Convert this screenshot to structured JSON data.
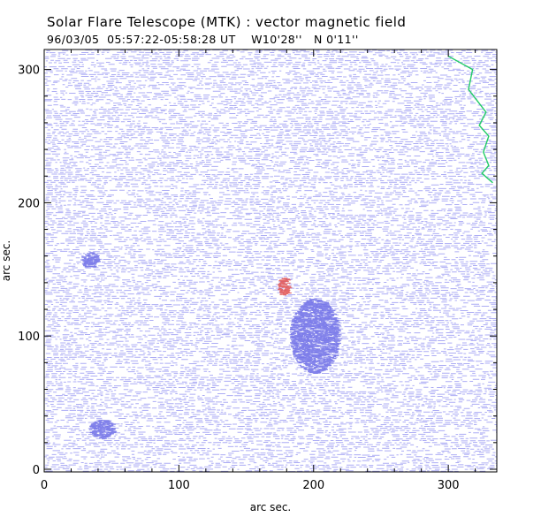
{
  "chart_data": {
    "type": "scatter",
    "title": "Solar Flare Telescope (MTK) : vector magnetic field",
    "subtitle": {
      "date": "96/03/05",
      "time_range": "05:57:22-05:58:28 UT",
      "longitude": "W10'28''",
      "latitude": "N 0'11''"
    },
    "xlabel": "arc sec.",
    "ylabel": "arc sec.",
    "xlim": [
      0,
      336
    ],
    "ylim": [
      -2,
      315
    ],
    "xticks": [
      0,
      100,
      200,
      300
    ],
    "yticks": [
      0,
      100,
      200,
      300
    ],
    "series": [
      {
        "name": "transverse field vectors",
        "color": "#8c8cf0",
        "description": "dense field of short horizontal strokes covering the whole field of view"
      },
      {
        "name": "strong field concentration",
        "color": "#6e6ee6",
        "regions": [
          {
            "x": 200,
            "y": 100,
            "rx": 18,
            "ry": 28
          },
          {
            "x": 33,
            "y": 157,
            "rx": 6,
            "ry": 6
          },
          {
            "x": 42,
            "y": 30,
            "rx": 9,
            "ry": 7
          }
        ]
      },
      {
        "name": "positive polarity",
        "color": "#e05050",
        "regions": [
          {
            "x": 177,
            "y": 137,
            "rx": 4,
            "ry": 7
          }
        ]
      },
      {
        "name": "limb contour",
        "color": "#22cc66",
        "points": [
          [
            300,
            310
          ],
          [
            318,
            300
          ],
          [
            315,
            285
          ],
          [
            328,
            268
          ],
          [
            323,
            258
          ],
          [
            330,
            250
          ],
          [
            326,
            238
          ],
          [
            330,
            228
          ],
          [
            325,
            222
          ],
          [
            333,
            215
          ]
        ]
      }
    ]
  }
}
